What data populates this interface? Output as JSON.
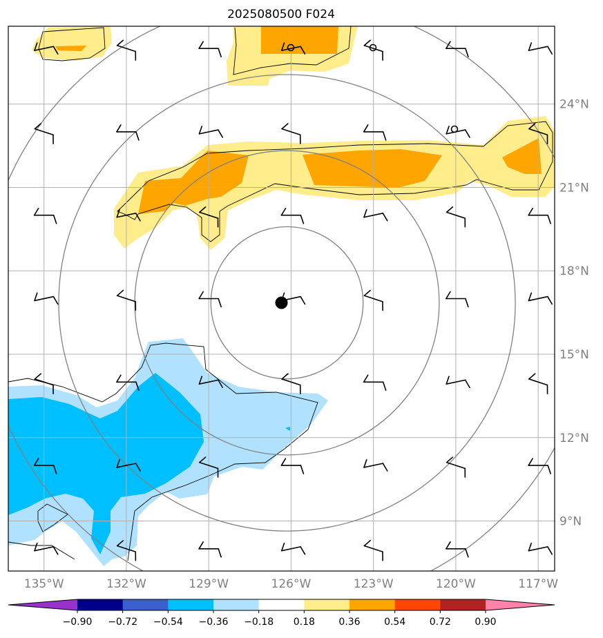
{
  "title": "2025080500 F024",
  "map": {
    "lon_labels": [
      "135°W",
      "132°W",
      "129°W",
      "126°W",
      "123°W",
      "120°W",
      "117°W"
    ],
    "lon_values": [
      -135,
      -132,
      -129,
      -126,
      -123,
      -120,
      -117
    ],
    "lat_labels": [
      "24°N",
      "21°N",
      "18°N",
      "15°N",
      "12°N",
      "9°N"
    ],
    "lat_values": [
      24,
      21,
      18,
      15,
      12,
      9
    ],
    "lon_range": [
      -136.3,
      -116.4
    ],
    "lat_range": [
      7.2,
      26.8
    ],
    "storm_center": {
      "lon": -126.35,
      "lat": 16.85
    },
    "range_rings_deg": [
      2.8,
      5.6,
      8.4,
      11.2
    ],
    "ring_color": "#808080",
    "grid_color": "#b0b0b0"
  },
  "colorbar": {
    "colors": [
      "#9932cc",
      "#00008b",
      "#3a5fcd",
      "#00bfff",
      "#b0e2ff",
      "#ffffff",
      "#ffec8b",
      "#ffa500",
      "#ff4500",
      "#b22222",
      "#ff82ab"
    ],
    "tick_labels": [
      "−0.90",
      "−0.72",
      "−0.54",
      "−0.36",
      "−0.18",
      "0.18",
      "0.36",
      "0.54",
      "0.72",
      "0.90"
    ]
  },
  "chart_data": {
    "type": "heatmap",
    "title": "2025080500 F024",
    "xlabel": "",
    "ylabel": "",
    "xlim": [
      -136.3,
      -116.4
    ],
    "ylim": [
      7.2,
      26.8
    ],
    "levels": [
      -0.9,
      -0.72,
      -0.54,
      -0.36,
      -0.18,
      0.18,
      0.36,
      0.54,
      0.72,
      0.9
    ],
    "wind_barbs": {
      "lons": [
        -135,
        -132,
        -129,
        -126,
        -123,
        -120,
        -117
      ],
      "lats": [
        26,
        23,
        20,
        17,
        14,
        11,
        8
      ],
      "directions": "predominantly easterly, ~10 kt"
    },
    "storm_marker": {
      "lon": -126.35,
      "lat": 16.85
    },
    "small_markers": [
      {
        "lon": -126,
        "lat": 26
      },
      {
        "lon": -123,
        "lat": 26
      },
      {
        "lon": -120,
        "lat": 23
      }
    ],
    "range_rings_deg": [
      2.8,
      5.6,
      8.4,
      11.2
    ],
    "grid": true
  }
}
